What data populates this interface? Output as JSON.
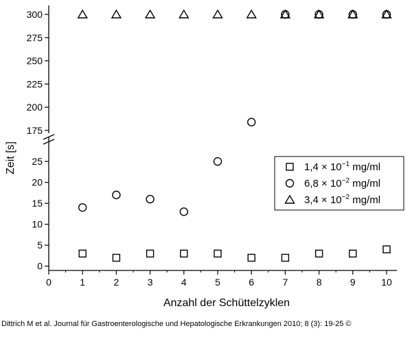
{
  "chart_data": {
    "type": "scatter",
    "title": "",
    "xlabel": "Anzahl der Schüttelzyklen",
    "ylabel": "Zeit [s]",
    "xlim": [
      0,
      10.2
    ],
    "x_ticks": [
      0,
      1,
      2,
      3,
      4,
      5,
      6,
      7,
      8,
      9,
      10
    ],
    "y_axis_break": true,
    "ylim_lower": [
      -1,
      28
    ],
    "ylim_upper": [
      166,
      302
    ],
    "y_ticks_lower": [
      0,
      5,
      10,
      15,
      20,
      25
    ],
    "y_ticks_upper": [
      175,
      200,
      225,
      250,
      275,
      300
    ],
    "grid": false,
    "legend_position": "right",
    "x": [
      1,
      2,
      3,
      4,
      5,
      6,
      7,
      8,
      9,
      10
    ],
    "series": [
      {
        "name_base": "1,4 × 10",
        "name_exp": "−1",
        "name_unit": " mg/ml",
        "marker": "square",
        "values": [
          3,
          2,
          3,
          3,
          3,
          2,
          2,
          3,
          3,
          4
        ]
      },
      {
        "name_base": "6,8 × 10",
        "name_exp": "−2",
        "name_unit": " mg/ml",
        "marker": "circle",
        "values": [
          14,
          17,
          16,
          13,
          25,
          184,
          300,
          300,
          300,
          300
        ]
      },
      {
        "name_base": "3,4 × 10",
        "name_exp": "−2",
        "name_unit": " mg/ml",
        "marker": "triangle",
        "values": [
          300,
          300,
          300,
          300,
          300,
          300,
          300,
          300,
          300,
          300
        ]
      }
    ]
  },
  "citation": "Dittrich M et al. Journal für Gastroenterologische und Hepatologische Erkrankungen 2010; 8 (3): 19-25 ©"
}
